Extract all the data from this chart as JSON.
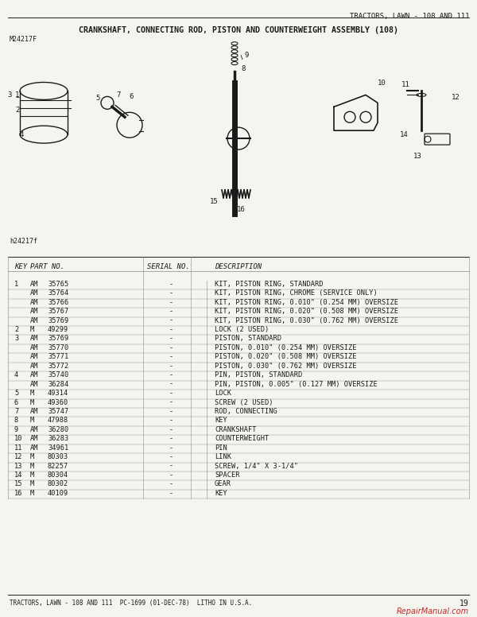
{
  "page_title": "TRACTORS, LAWN - 108 AND 111",
  "diagram_title": "CRANKSHAFT, CONNECTING ROD, PISTON AND COUNTERWEIGHT ASSEMBLY (108)",
  "fig_label": "M24217F",
  "fig_label2": "h24217f",
  "page_number": "19",
  "footer": "TRACTORS, LAWN - 108 AND 111  PC-1699 (01-DEC-78)  LITHO IN U.S.A.",
  "table_headers": [
    "KEY",
    "PART NO.",
    "SERIAL NO.",
    "DESCRIPTION"
  ],
  "parts": [
    {
      "key": "1",
      "prefix": "AM",
      "part": "35765",
      "serial": "-",
      "desc": "KIT, PISTON RING, STANDARD"
    },
    {
      "key": "",
      "prefix": "AM",
      "part": "35764",
      "serial": "-",
      "desc": "KIT, PISTON RING, CHROME (SERVICE ONLY)"
    },
    {
      "key": "",
      "prefix": "AM",
      "part": "35766",
      "serial": "-",
      "desc": "KIT, PISTON RING, 0.010\" (0.254 MM) OVERSIZE"
    },
    {
      "key": "",
      "prefix": "AM",
      "part": "35767",
      "serial": "-",
      "desc": "KIT, PISTON RING, 0.020\" (0.508 MM) OVERSIZE"
    },
    {
      "key": "",
      "prefix": "AM",
      "part": "35769",
      "serial": "-",
      "desc": "KIT, PISTON RING, 0.030\" (0.762 MM) OVERSIZE"
    },
    {
      "key": "2",
      "prefix": "M",
      "part": "49299",
      "serial": "-",
      "desc": "LOCK (2 USED)"
    },
    {
      "key": "3",
      "prefix": "AM",
      "part": "35769",
      "serial": "-",
      "desc": "PISTON, STANDARD"
    },
    {
      "key": "",
      "prefix": "AM",
      "part": "35770",
      "serial": "-",
      "desc": "PISTON, 0.010\" (0.254 MM) OVERSIZE"
    },
    {
      "key": "",
      "prefix": "AM",
      "part": "35771",
      "serial": "-",
      "desc": "PISTON, 0.020\" (0.508 MM) OVERSIZE"
    },
    {
      "key": "",
      "prefix": "AM",
      "part": "35772",
      "serial": "-",
      "desc": "PISTON, 0.030\" (0.762 MM) OVERSIZE"
    },
    {
      "key": "4",
      "prefix": "AM",
      "part": "35740",
      "serial": "-",
      "desc": "PIN, PISTON, STANDARD"
    },
    {
      "key": "",
      "prefix": "AM",
      "part": "36284",
      "serial": "-",
      "desc": "PIN, PISTON, 0.005\" (0.127 MM) OVERSIZE"
    },
    {
      "key": "5",
      "prefix": "M",
      "part": "49314",
      "serial": "-",
      "desc": "LOCK"
    },
    {
      "key": "6",
      "prefix": "M",
      "part": "49360",
      "serial": "-",
      "desc": "SCREW (2 USED)"
    },
    {
      "key": "7",
      "prefix": "AM",
      "part": "35747",
      "serial": "-",
      "desc": "ROD, CONNECTING"
    },
    {
      "key": "8",
      "prefix": "M",
      "part": "47988",
      "serial": "-",
      "desc": "KEY"
    },
    {
      "key": "9",
      "prefix": "AM",
      "part": "36280",
      "serial": "-",
      "desc": "CRANKSHAFT"
    },
    {
      "key": "10",
      "prefix": "AM",
      "part": "36283",
      "serial": "-",
      "desc": "COUNTERWEIGHT"
    },
    {
      "key": "11",
      "prefix": "AM",
      "part": "34961",
      "serial": "-",
      "desc": "PIN"
    },
    {
      "key": "12",
      "prefix": "M",
      "part": "80303",
      "serial": "-",
      "desc": "LINK"
    },
    {
      "key": "13",
      "prefix": "M",
      "part": "82257",
      "serial": "-",
      "desc": "SCREW, 1/4\" X 3-1/4\""
    },
    {
      "key": "14",
      "prefix": "M",
      "part": "80304",
      "serial": "-",
      "desc": "SPACER"
    },
    {
      "key": "15",
      "prefix": "M",
      "part": "80302",
      "serial": "-",
      "desc": "GEAR"
    },
    {
      "key": "16",
      "prefix": "M",
      "part": "40109",
      "serial": "-",
      "desc": "KEY"
    }
  ],
  "bg_color": "#f5f5f0",
  "text_color": "#1a1a1a",
  "line_color": "#888888",
  "header_line_color": "#333333"
}
